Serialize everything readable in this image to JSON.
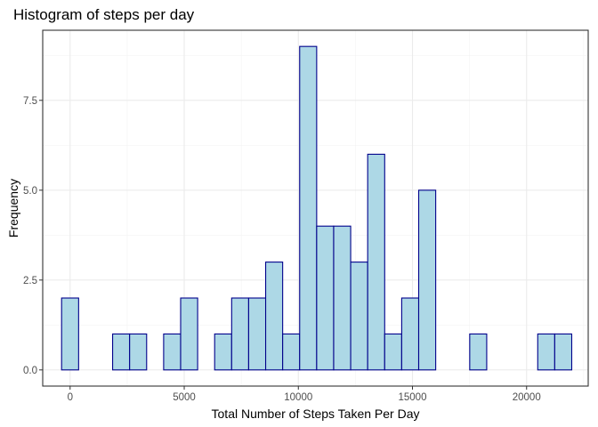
{
  "chart_data": {
    "type": "bar",
    "title": "Histogram of steps per day",
    "xlabel": "Total Number of Steps Taken Per Day",
    "ylabel": "Frequency",
    "xlim": [
      -1200,
      22700
    ],
    "ylim": [
      -0.45,
      9.45
    ],
    "x_ticks": [
      0,
      5000,
      10000,
      15000,
      20000
    ],
    "x_tick_labels": [
      "0",
      "5000",
      "10000",
      "15000",
      "20000"
    ],
    "y_ticks": [
      0,
      2.5,
      5,
      7.5
    ],
    "y_tick_labels": [
      "0.0",
      "2.5",
      "5.0",
      "7.5"
    ],
    "grid": true,
    "bin_width": 745,
    "bins": [
      {
        "x0": -373,
        "x1": 373,
        "count": 2
      },
      {
        "x0": 373,
        "x1": 1118,
        "count": 0
      },
      {
        "x0": 1118,
        "x1": 1863,
        "count": 0
      },
      {
        "x0": 1863,
        "x1": 2608,
        "count": 1
      },
      {
        "x0": 2608,
        "x1": 3353,
        "count": 1
      },
      {
        "x0": 3353,
        "x1": 4098,
        "count": 0
      },
      {
        "x0": 4098,
        "x1": 4843,
        "count": 1
      },
      {
        "x0": 4843,
        "x1": 5588,
        "count": 2
      },
      {
        "x0": 5588,
        "x1": 6333,
        "count": 0
      },
      {
        "x0": 6333,
        "x1": 7078,
        "count": 1
      },
      {
        "x0": 7078,
        "x1": 7823,
        "count": 2
      },
      {
        "x0": 7823,
        "x1": 8568,
        "count": 2
      },
      {
        "x0": 8568,
        "x1": 9313,
        "count": 3
      },
      {
        "x0": 9313,
        "x1": 10058,
        "count": 1
      },
      {
        "x0": 10058,
        "x1": 10803,
        "count": 9
      },
      {
        "x0": 10803,
        "x1": 11548,
        "count": 4
      },
      {
        "x0": 11548,
        "x1": 12293,
        "count": 4
      },
      {
        "x0": 12293,
        "x1": 13038,
        "count": 3
      },
      {
        "x0": 13038,
        "x1": 13783,
        "count": 6
      },
      {
        "x0": 13783,
        "x1": 14528,
        "count": 1
      },
      {
        "x0": 14528,
        "x1": 15273,
        "count": 2
      },
      {
        "x0": 15273,
        "x1": 16018,
        "count": 5
      },
      {
        "x0": 16018,
        "x1": 16763,
        "count": 0
      },
      {
        "x0": 16763,
        "x1": 17508,
        "count": 0
      },
      {
        "x0": 17508,
        "x1": 18253,
        "count": 1
      },
      {
        "x0": 18253,
        "x1": 18998,
        "count": 0
      },
      {
        "x0": 18998,
        "x1": 19743,
        "count": 0
      },
      {
        "x0": 19743,
        "x1": 20488,
        "count": 0
      },
      {
        "x0": 20488,
        "x1": 21233,
        "count": 1
      },
      {
        "x0": 21233,
        "x1": 21978,
        "count": 1
      }
    ],
    "colors": {
      "fill": "#add8e6",
      "border": "#00008b",
      "panel_border": "#333333"
    }
  }
}
